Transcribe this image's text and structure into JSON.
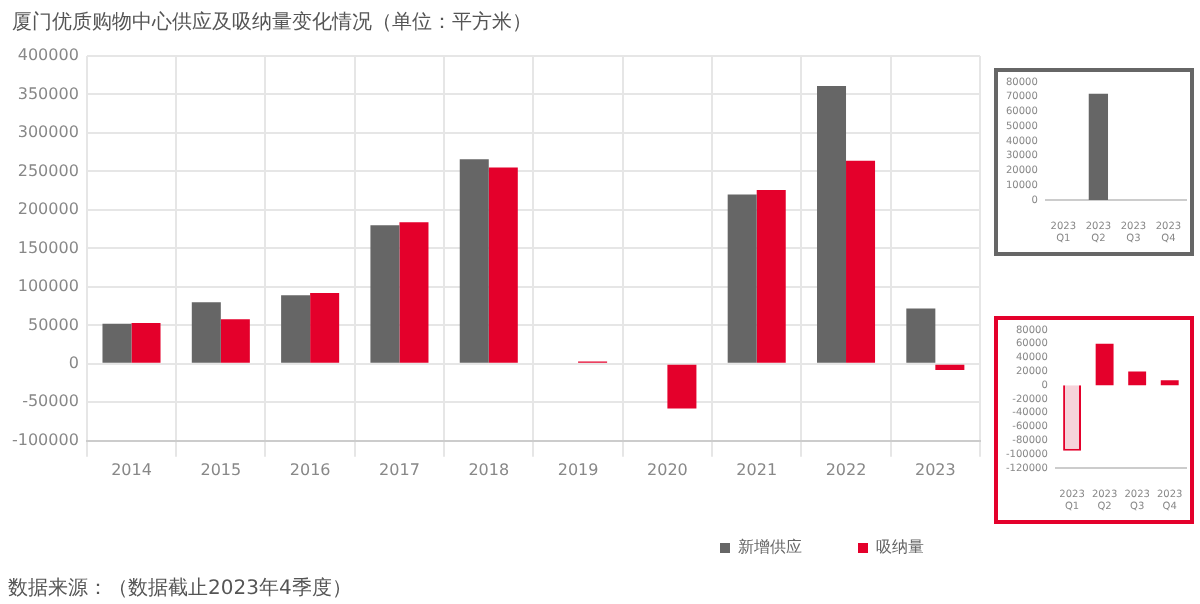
{
  "chart_data": [
    {
      "type": "bar",
      "title": "厦门优质购物中心供应及吸纳量变化情况（单位：平方米）",
      "categories": [
        "2014",
        "2015",
        "2016",
        "2017",
        "2018",
        "2019",
        "2020",
        "2021",
        "2022",
        "2023"
      ],
      "series": [
        {
          "name": "新增供应",
          "color": "#666666",
          "values": [
            52000,
            80000,
            89000,
            180000,
            266000,
            null,
            null,
            220000,
            361000,
            72000
          ]
        },
        {
          "name": "吸纳量",
          "color": "#e4002b",
          "values": [
            53000,
            58000,
            92000,
            184000,
            255000,
            3000,
            -58000,
            226000,
            264000,
            -8000
          ]
        }
      ],
      "ylim": [
        -100000,
        400000
      ],
      "yticks": [
        -100000,
        -50000,
        0,
        50000,
        100000,
        150000,
        200000,
        250000,
        300000,
        350000,
        400000
      ],
      "grid": true,
      "legend": "bottom",
      "annotations": [
        "数据来源：（数据截止2023年4季度）"
      ]
    },
    {
      "type": "bar",
      "categories": [
        "2023 Q1",
        "2023 Q2",
        "2023 Q3",
        "2023 Q4"
      ],
      "values": [
        null,
        72000,
        null,
        null
      ],
      "color": "#666666",
      "ylim": [
        0,
        80000
      ],
      "yticks": [
        0,
        10000,
        20000,
        30000,
        40000,
        50000,
        60000,
        70000,
        80000
      ]
    },
    {
      "type": "bar",
      "categories": [
        "2023 Q1",
        "2023 Q2",
        "2023 Q3",
        "2023 Q4"
      ],
      "values": [
        -95000,
        60000,
        20000,
        7000
      ],
      "colors": [
        "#f6d3da",
        "#e4002b",
        "#e4002b",
        "#e4002b"
      ],
      "ylim": [
        -120000,
        80000
      ],
      "yticks": [
        -120000,
        -100000,
        -80000,
        -60000,
        -40000,
        -20000,
        0,
        20000,
        40000,
        60000,
        80000
      ]
    }
  ]
}
